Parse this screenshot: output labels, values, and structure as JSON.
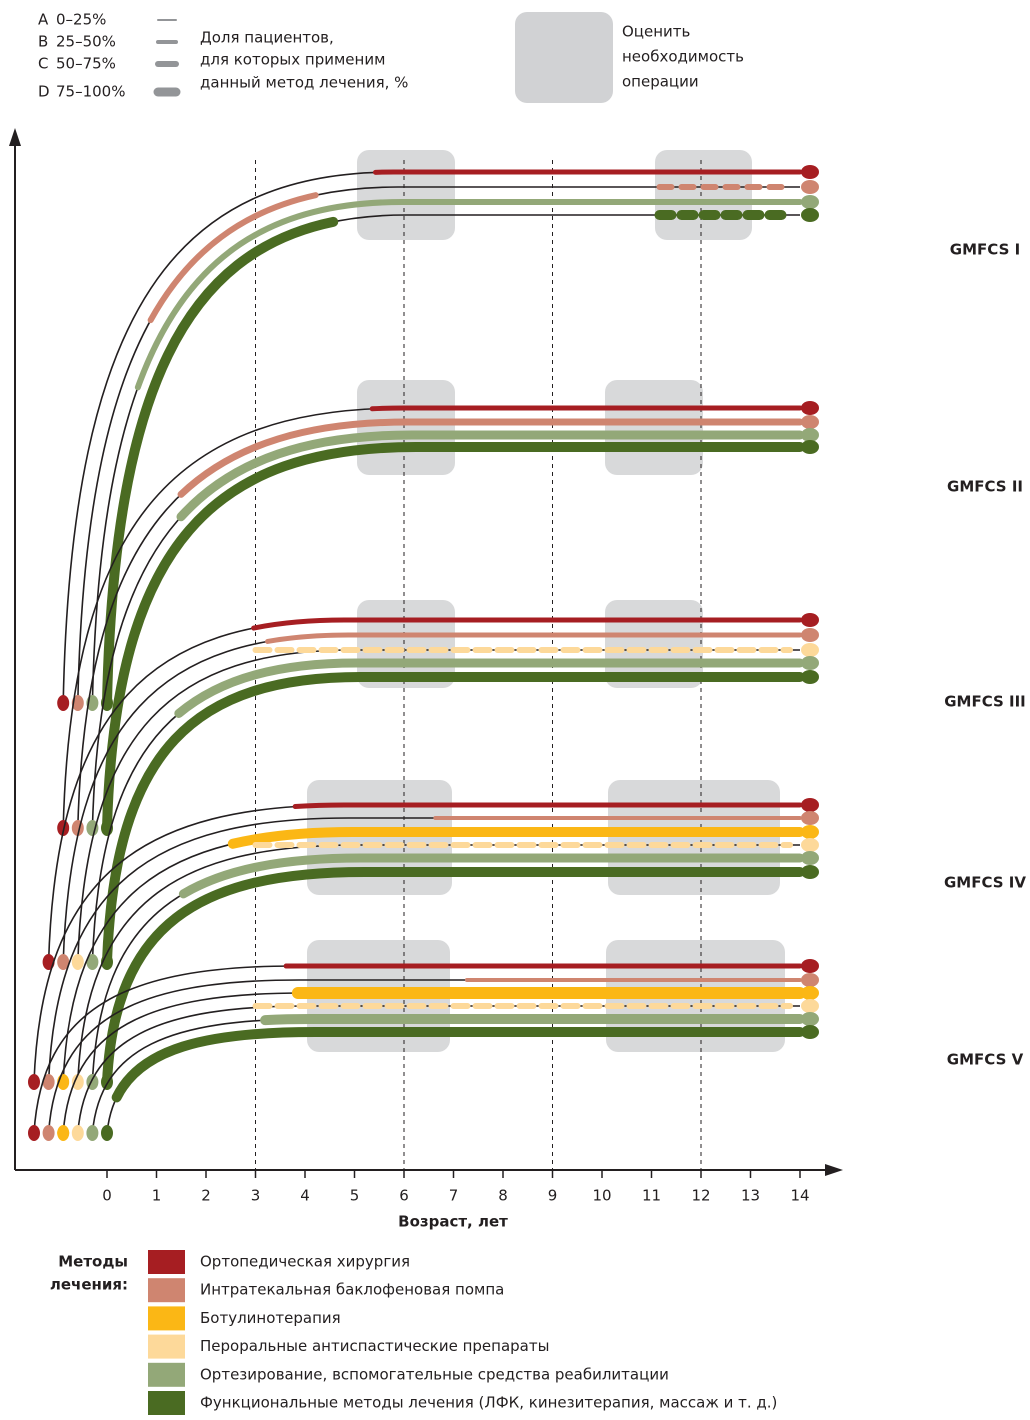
{
  "intensity_legend": {
    "items": [
      {
        "code": "A",
        "range": "0–25%"
      },
      {
        "code": "B",
        "range": "25–50%"
      },
      {
        "code": "C",
        "range": "50–75%"
      },
      {
        "code": "D",
        "range": "75–100%"
      }
    ],
    "caption": [
      "Доля пациентов,",
      "для которых применим",
      "данный метод лечения, %"
    ]
  },
  "surgery_legend": {
    "lines": [
      "Оценить",
      "необходимость",
      "операции"
    ]
  },
  "x_axis": {
    "label": "Возраст, лет",
    "ticks": [
      0,
      1,
      2,
      3,
      4,
      5,
      6,
      7,
      8,
      9,
      10,
      11,
      12,
      13,
      14
    ]
  },
  "levels": [
    {
      "label": "GMFCS I"
    },
    {
      "label": "GMFCS II"
    },
    {
      "label": "GMFCS III"
    },
    {
      "label": "GMFCS IV"
    },
    {
      "label": "GMFCS V"
    }
  ],
  "methods": {
    "title": [
      "Методы",
      "лечения:"
    ],
    "items": [
      {
        "name": "Ортопедическая хирургия",
        "color": "#a61e22"
      },
      {
        "name": "Интратекальная баклофеновая помпа",
        "color": "#cf8570"
      },
      {
        "name": "Ботулинотерапия",
        "color": "#fbb715"
      },
      {
        "name": "Пероральные антиспастические препараты",
        "color": "#fdd99a"
      },
      {
        "name": "Ортезирование, вспомогательные средства реабилитации",
        "color": "#93a878"
      },
      {
        "name": "Функциональные методы лечения (ЛФК, кинезитерапия, массаж и т. д.)",
        "color": "#4a6b22"
      }
    ]
  }
}
